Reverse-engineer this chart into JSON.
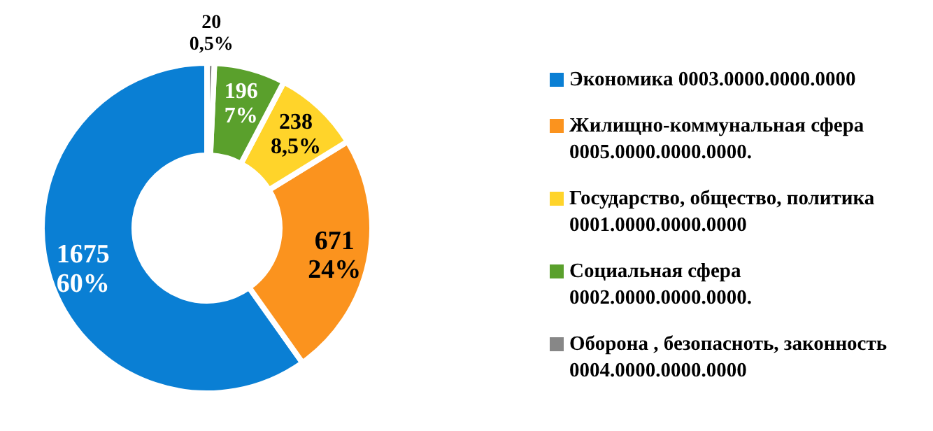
{
  "chart_data": {
    "type": "donut",
    "categories": [
      "Экономика 0003.0000.0000.0000",
      "Жилищно-коммунальная сфера 0005.0000.0000.0000.",
      "Государство, общество, политика 0001.0000.0000.0000",
      "Социальная сфера 0002.0000.0000.0000.",
      "Оборона , безопасноть, законность 0004.0000.0000.0000"
    ],
    "values": [
      1675,
      671,
      238,
      196,
      20
    ],
    "colors": [
      "#0a7fd4",
      "#fb931e",
      "#ffd42a",
      "#5aa02c",
      "#878787"
    ],
    "value_labels": [
      "1675\n60%",
      "671\n24%",
      "238\n8,5%",
      "196\n7%",
      "20\n0,5%"
    ],
    "legend": "right"
  }
}
